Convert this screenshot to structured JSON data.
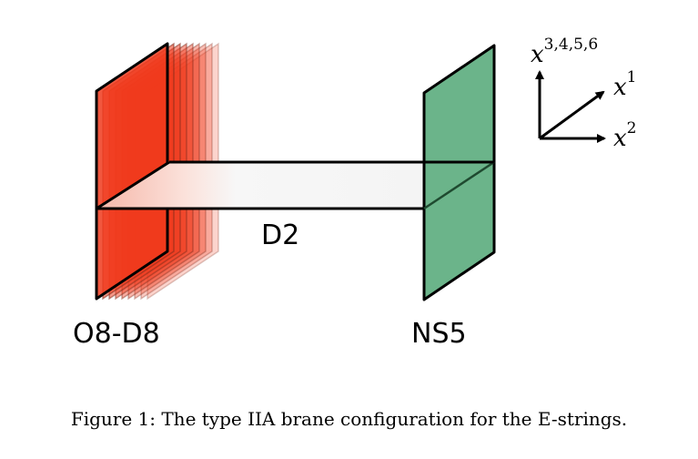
{
  "labels": {
    "o8_d8": "O8-D8",
    "ns5": "NS5",
    "d2": "D2"
  },
  "axes": {
    "vertical": {
      "base": "x",
      "sup": "3,4,5,6"
    },
    "diagonal": {
      "base": "x",
      "sup": "1"
    },
    "horizontal": {
      "base": "x",
      "sup": "2"
    }
  },
  "caption": "Figure 1: The type IIA brane configuration for the E-strings.",
  "colors": {
    "o8_plane": "#f03a1c",
    "ns5_plane": "#66b286",
    "d2_strip": "#f4f4f4"
  }
}
